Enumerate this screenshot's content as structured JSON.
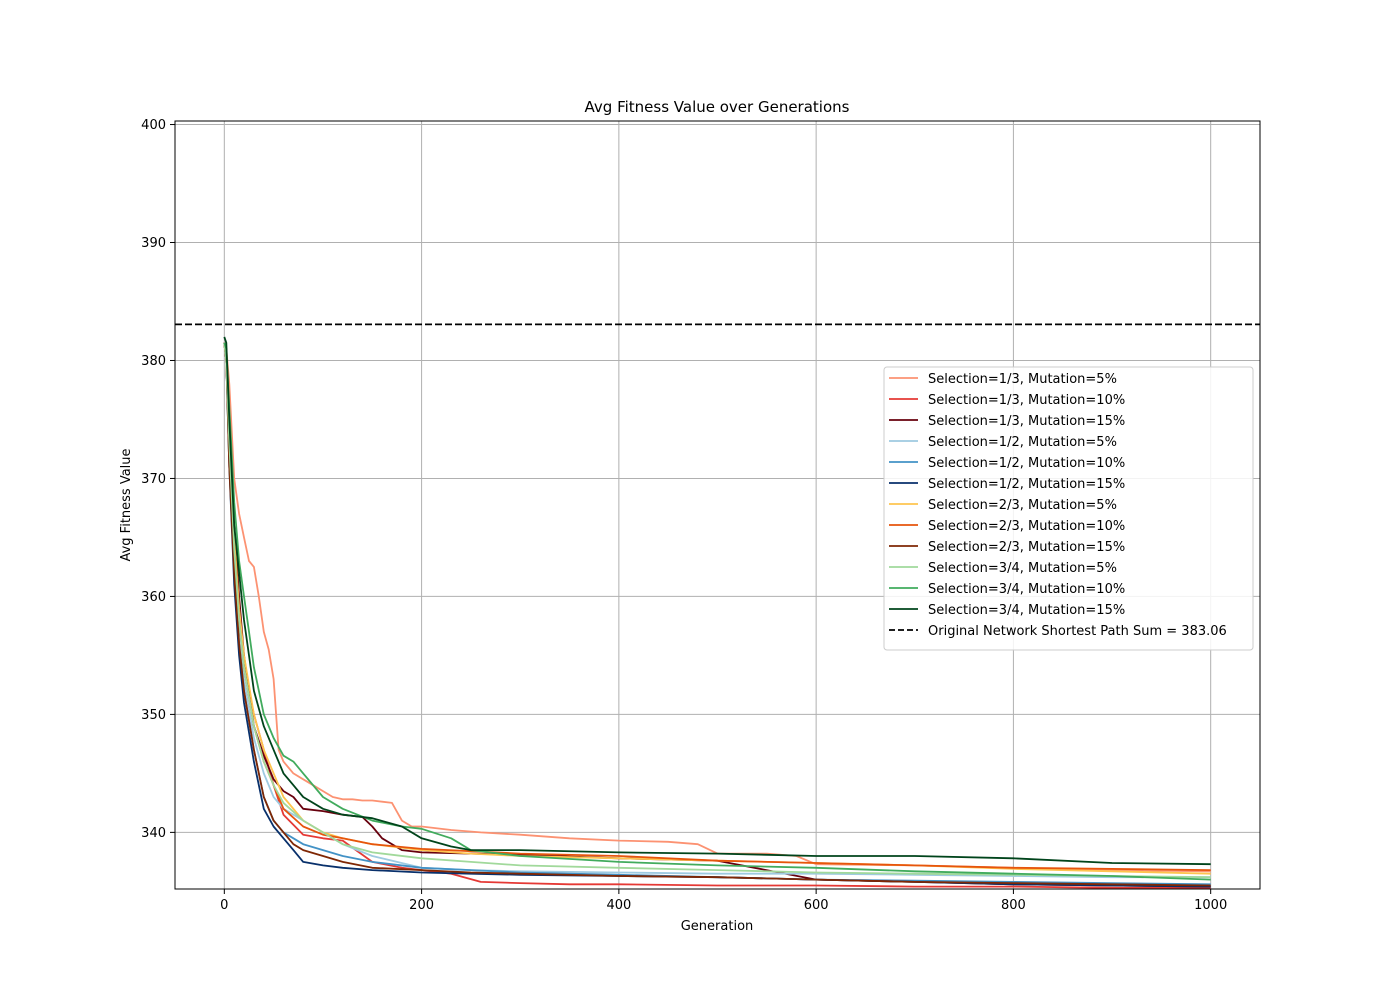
{
  "chart_data": {
    "type": "line",
    "title": "Avg Fitness Value over Generations",
    "xlabel": "Generation",
    "ylabel": "Avg Fitness Value",
    "xlim": [
      -50,
      1050
    ],
    "ylim": [
      335.2,
      400.3
    ],
    "xticks": [
      0,
      200,
      400,
      600,
      800,
      1000
    ],
    "yticks": [
      340,
      350,
      360,
      370,
      380,
      390,
      400
    ],
    "grid": true,
    "legend_position": "center-right",
    "reference_line": {
      "label": "Original Network Shortest Path Sum = 383.06",
      "value": 383.06,
      "color": "#000000",
      "style": "dashed"
    },
    "series": [
      {
        "name": "Selection=1/3, Mutation=5%",
        "color": "#fc9272",
        "x": [
          0,
          2,
          5,
          10,
          15,
          20,
          25,
          30,
          35,
          40,
          45,
          50,
          55,
          60,
          65,
          70,
          80,
          90,
          100,
          110,
          120,
          130,
          140,
          150,
          160,
          170,
          180,
          190,
          200,
          230,
          260,
          300,
          350,
          400,
          450,
          480,
          500,
          550,
          580,
          600,
          700,
          800,
          900,
          1000
        ],
        "y": [
          381.5,
          381.0,
          378.0,
          370.0,
          367.0,
          365.0,
          363.0,
          362.5,
          360.0,
          357.0,
          355.5,
          353.0,
          347.0,
          346.0,
          345.5,
          345.0,
          344.5,
          344.0,
          343.5,
          343.0,
          342.8,
          342.8,
          342.7,
          342.7,
          342.6,
          342.5,
          341.0,
          340.5,
          340.5,
          340.2,
          340.0,
          339.8,
          339.5,
          339.3,
          339.2,
          339.0,
          338.2,
          338.2,
          338.0,
          337.3,
          337.2,
          337.0,
          336.8,
          336.7
        ]
      },
      {
        "name": "Selection=1/3, Mutation=10%",
        "color": "#e53935",
        "x": [
          0,
          2,
          5,
          10,
          15,
          20,
          30,
          40,
          50,
          60,
          80,
          100,
          120,
          150,
          180,
          200,
          230,
          260,
          300,
          350,
          400,
          500,
          600,
          700,
          800,
          900,
          1000
        ],
        "y": [
          381.5,
          380.0,
          372.0,
          364.0,
          358.0,
          354.0,
          350.0,
          347.0,
          344.0,
          341.5,
          339.8,
          339.5,
          339.3,
          337.5,
          337.0,
          336.8,
          336.5,
          335.8,
          335.7,
          335.6,
          335.6,
          335.5,
          335.5,
          335.4,
          335.4,
          335.3,
          335.3
        ]
      },
      {
        "name": "Selection=1/3, Mutation=15%",
        "color": "#67000d",
        "x": [
          0,
          2,
          5,
          10,
          15,
          20,
          25,
          30,
          40,
          50,
          60,
          70,
          80,
          100,
          120,
          140,
          150,
          160,
          180,
          200,
          250,
          300,
          400,
          500,
          600,
          700,
          800,
          900,
          1000
        ],
        "y": [
          381.5,
          380.0,
          373.0,
          366.0,
          360.0,
          355.0,
          352.0,
          349.0,
          346.5,
          344.5,
          343.5,
          343.0,
          342.0,
          341.8,
          341.5,
          341.3,
          340.5,
          339.5,
          338.5,
          338.3,
          338.2,
          338.1,
          337.8,
          337.6,
          336.0,
          335.8,
          335.6,
          335.5,
          335.4
        ]
      },
      {
        "name": "Selection=1/2, Mutation=5%",
        "color": "#9ecae1",
        "x": [
          0,
          2,
          5,
          10,
          15,
          20,
          30,
          40,
          50,
          60,
          70,
          80,
          100,
          120,
          150,
          200,
          250,
          300,
          400,
          500,
          600,
          700,
          800,
          900,
          1000
        ],
        "y": [
          381.5,
          380.0,
          372.0,
          364.0,
          358.0,
          353.0,
          348.0,
          345.0,
          343.0,
          342.0,
          341.5,
          341.0,
          340.0,
          339.0,
          338.0,
          337.0,
          336.8,
          336.7,
          336.6,
          336.5,
          336.5,
          336.4,
          336.3,
          336.2,
          336.2
        ]
      },
      {
        "name": "Selection=1/2, Mutation=10%",
        "color": "#4292c6",
        "x": [
          0,
          2,
          5,
          10,
          15,
          20,
          30,
          40,
          45,
          50,
          60,
          70,
          80,
          100,
          120,
          150,
          200,
          250,
          300,
          400,
          500,
          600,
          700,
          800,
          900,
          1000
        ],
        "y": [
          381.5,
          380.0,
          372.0,
          362.0,
          356.0,
          352.0,
          347.0,
          343.0,
          342.0,
          341.0,
          340.0,
          339.5,
          339.0,
          338.5,
          338.0,
          337.5,
          337.0,
          336.8,
          336.6,
          336.4,
          336.2,
          336.0,
          335.9,
          335.8,
          335.7,
          335.6
        ]
      },
      {
        "name": "Selection=1/2, Mutation=15%",
        "color": "#08306b",
        "x": [
          0,
          2,
          5,
          10,
          15,
          20,
          30,
          40,
          50,
          60,
          70,
          80,
          100,
          120,
          150,
          200,
          250,
          300,
          400,
          500,
          600,
          700,
          800,
          900,
          1000
        ],
        "y": [
          381.5,
          380.0,
          371.0,
          361.0,
          355.0,
          351.0,
          346.0,
          342.0,
          340.5,
          339.5,
          338.5,
          337.5,
          337.2,
          337.0,
          336.8,
          336.6,
          336.5,
          336.4,
          336.3,
          336.2,
          336.0,
          335.8,
          335.6,
          335.5,
          335.4
        ]
      },
      {
        "name": "Selection=2/3, Mutation=5%",
        "color": "#fec44f",
        "x": [
          0,
          2,
          5,
          10,
          15,
          20,
          30,
          40,
          50,
          60,
          80,
          100,
          120,
          150,
          200,
          250,
          300,
          400,
          500,
          600,
          700,
          800,
          900,
          1000
        ],
        "y": [
          381.5,
          380.0,
          373.0,
          365.0,
          359.0,
          355.0,
          350.0,
          347.0,
          345.0,
          343.0,
          341.0,
          340.0,
          339.5,
          339.0,
          338.5,
          338.2,
          338.0,
          337.8,
          337.6,
          337.4,
          337.2,
          336.9,
          336.7,
          336.5
        ]
      },
      {
        "name": "Selection=2/3, Mutation=10%",
        "color": "#e6550d",
        "x": [
          0,
          2,
          5,
          10,
          15,
          20,
          30,
          40,
          50,
          60,
          80,
          100,
          120,
          150,
          200,
          250,
          300,
          400,
          500,
          600,
          700,
          800,
          900,
          1000
        ],
        "y": [
          381.5,
          380.0,
          372.0,
          364.0,
          358.0,
          354.0,
          349.0,
          346.0,
          344.0,
          342.0,
          340.5,
          339.8,
          339.5,
          339.0,
          338.6,
          338.4,
          338.2,
          338.0,
          337.6,
          337.4,
          337.2,
          337.0,
          336.9,
          336.8
        ]
      },
      {
        "name": "Selection=2/3, Mutation=15%",
        "color": "#7f2704",
        "x": [
          0,
          2,
          5,
          10,
          15,
          20,
          30,
          40,
          50,
          60,
          70,
          80,
          100,
          120,
          150,
          200,
          250,
          300,
          400,
          500,
          600,
          700,
          800,
          900,
          1000
        ],
        "y": [
          381.5,
          380.0,
          371.0,
          362.0,
          356.0,
          352.0,
          347.0,
          343.0,
          341.0,
          340.0,
          339.0,
          338.5,
          338.0,
          337.5,
          337.0,
          336.8,
          336.6,
          336.5,
          336.3,
          336.2,
          336.0,
          335.8,
          335.7,
          335.6,
          335.5
        ]
      },
      {
        "name": "Selection=3/4, Mutation=5%",
        "color": "#a1d99b",
        "x": [
          0,
          2,
          5,
          10,
          15,
          20,
          30,
          40,
          50,
          60,
          80,
          100,
          120,
          150,
          200,
          250,
          300,
          400,
          500,
          600,
          700,
          800,
          900,
          1000
        ],
        "y": [
          381.5,
          380.0,
          373.0,
          364.0,
          358.0,
          354.0,
          349.0,
          346.0,
          344.0,
          342.5,
          341.0,
          340.0,
          339.0,
          338.3,
          337.8,
          337.5,
          337.2,
          337.0,
          336.8,
          336.6,
          336.5,
          336.4,
          336.3,
          336.2
        ]
      },
      {
        "name": "Selection=3/4, Mutation=10%",
        "color": "#41ab5d",
        "x": [
          0,
          2,
          5,
          10,
          15,
          20,
          25,
          30,
          40,
          50,
          60,
          70,
          80,
          100,
          120,
          150,
          180,
          200,
          230,
          250,
          300,
          400,
          500,
          600,
          700,
          800,
          900,
          1000
        ],
        "y": [
          381.5,
          381.0,
          376.0,
          368.0,
          363.0,
          360.0,
          357.0,
          354.0,
          350.0,
          348.0,
          346.5,
          346.0,
          345.0,
          343.0,
          342.0,
          341.0,
          340.5,
          340.3,
          339.5,
          338.5,
          338.0,
          337.5,
          337.2,
          337.0,
          336.7,
          336.5,
          336.3,
          336.0
        ]
      },
      {
        "name": "Selection=3/4, Mutation=15%",
        "color": "#00441b",
        "x": [
          0,
          2,
          5,
          10,
          15,
          20,
          25,
          30,
          40,
          50,
          60,
          70,
          80,
          100,
          120,
          150,
          180,
          200,
          230,
          250,
          300,
          400,
          500,
          600,
          700,
          800,
          900,
          1000
        ],
        "y": [
          382.0,
          381.5,
          375.0,
          366.0,
          362.0,
          358.0,
          355.0,
          352.0,
          349.0,
          347.0,
          345.0,
          344.0,
          343.0,
          342.0,
          341.5,
          341.2,
          340.5,
          339.5,
          338.8,
          338.5,
          338.5,
          338.3,
          338.2,
          338.0,
          338.0,
          337.8,
          337.4,
          337.3
        ]
      }
    ]
  }
}
